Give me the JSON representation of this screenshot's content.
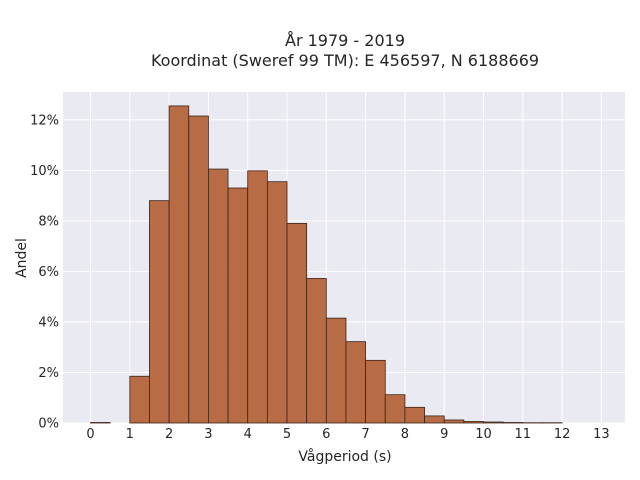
{
  "chart_data": {
    "type": "bar",
    "title": "År 1979 - 2019",
    "subtitle": "Koordinat (Sweref 99 TM): E 456597, N 6188669",
    "xlabel": "Vågperiod (s)",
    "ylabel": "Andel",
    "bin_width": 0.5,
    "x_start": [
      0,
      0.5,
      1,
      1.5,
      2,
      2.5,
      3,
      3.5,
      4,
      4.5,
      5,
      5.5,
      6,
      6.5,
      7,
      7.5,
      8,
      8.5,
      9,
      9.5,
      10,
      10.5,
      11,
      11.5,
      12
    ],
    "values": [
      0.0002,
      0,
      0.0185,
      0.088,
      0.1255,
      0.1215,
      0.1005,
      0.093,
      0.0998,
      0.0955,
      0.079,
      0.0572,
      0.0415,
      0.0322,
      0.0248,
      0.0112,
      0.0062,
      0.0028,
      0.0012,
      0.0006,
      0.0004,
      0.0002,
      0.0001,
      0.0001,
      0
    ],
    "xlim": [
      -0.7,
      13.6
    ],
    "ylim": [
      0,
      0.131
    ],
    "xticks": [
      0,
      1,
      2,
      3,
      4,
      5,
      6,
      7,
      8,
      9,
      10,
      11,
      12,
      13
    ],
    "xtick_labels": [
      "0",
      "1",
      "2",
      "3",
      "4",
      "5",
      "6",
      "7",
      "8",
      "9",
      "10",
      "11",
      "12",
      "13"
    ],
    "yticks": [
      0,
      0.02,
      0.04,
      0.06,
      0.08,
      0.1,
      0.12
    ],
    "ytick_labels": [
      "0%",
      "2%",
      "4%",
      "6%",
      "8%",
      "10%",
      "12%"
    ],
    "grid": true,
    "legend": "none",
    "colors": {
      "bar_fill": "#b5653c",
      "bar_edge": "#3a2418",
      "plot_background": "#eaeaf2",
      "grid": "#ffffff"
    }
  }
}
